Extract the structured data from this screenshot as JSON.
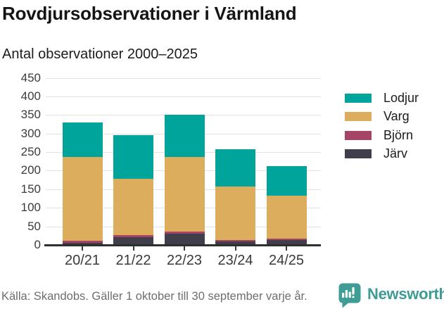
{
  "header": {
    "title": "Rovdjursobservationer i Värmland",
    "subtitle": "Antal observationer 2000–2025"
  },
  "chart_data": {
    "type": "bar",
    "stacked": true,
    "title": "Rovdjursobservationer i Värmland",
    "subtitle": "Antal observationer 2000–2025",
    "categories": [
      "20/21",
      "21/22",
      "22/23",
      "23/24",
      "24/25"
    ],
    "series": [
      {
        "name": "Järv",
        "color": "#413e4b",
        "values": [
          6,
          21,
          31,
          9,
          14
        ]
      },
      {
        "name": "Björn",
        "color": "#a54465",
        "values": [
          5,
          5,
          5,
          5,
          4
        ]
      },
      {
        "name": "Varg",
        "color": "#dbad5d",
        "values": [
          226,
          152,
          201,
          143,
          115
        ]
      },
      {
        "name": "Lodjur",
        "color": "#00a49a",
        "values": [
          93,
          117,
          113,
          100,
          80
        ]
      }
    ],
    "totals": [
      330,
      295,
      350,
      257,
      213
    ],
    "legend_order": [
      "Lodjur",
      "Varg",
      "Björn",
      "Järv"
    ],
    "legend_position": "right",
    "xlabel": "",
    "ylabel": "",
    "ylim": [
      0,
      450
    ],
    "ytick_step": 50,
    "yticks": [
      "0",
      "50",
      "100",
      "150",
      "200",
      "250",
      "300",
      "350",
      "400",
      "450"
    ],
    "grid": true,
    "grid_color": "#e2e2e2",
    "axis_color": "#2e2e2e"
  },
  "footer": {
    "source": "Källa: Skandobs. Gäller 1 oktober till 30 september varje år.",
    "brand": "Newsworthy",
    "brand_color": "#3e9b95"
  }
}
